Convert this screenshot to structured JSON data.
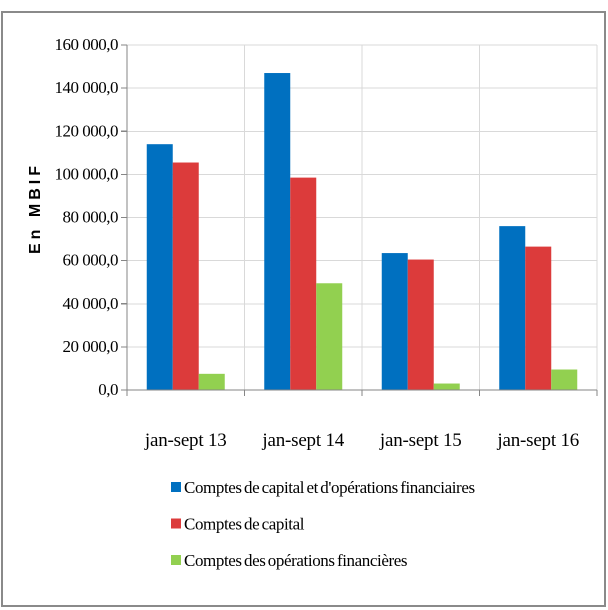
{
  "chart_data": {
    "type": "bar",
    "categories": [
      "jan-sept 13",
      "jan-sept 14",
      "jan-sept 15",
      "jan-sept 16"
    ],
    "series": [
      {
        "name": "Comptes de capital et d'opérations financiaires",
        "color": "#0070C0",
        "values": [
          114000,
          147000,
          63500,
          76000
        ]
      },
      {
        "name": "Comptes de capital",
        "color": "#DC3B3B",
        "values": [
          105500,
          98500,
          60500,
          66500
        ]
      },
      {
        "name": "Comptes des opérations financières",
        "color": "#92D050",
        "values": [
          7500,
          49500,
          3000,
          9500
        ]
      }
    ],
    "ylabel": "En MBIF",
    "ylim": [
      0,
      160000
    ],
    "yticks": [
      0,
      20000,
      40000,
      60000,
      80000,
      100000,
      120000,
      140000,
      160000
    ],
    "ytick_labels": [
      "0,0",
      "20 000,0",
      "40 000,0",
      "60 000,0",
      "80 000,0",
      "100 000,0",
      "120 000,0",
      "140 000,0",
      "160 000,0"
    ],
    "grid": true,
    "legend": "bottom"
  }
}
